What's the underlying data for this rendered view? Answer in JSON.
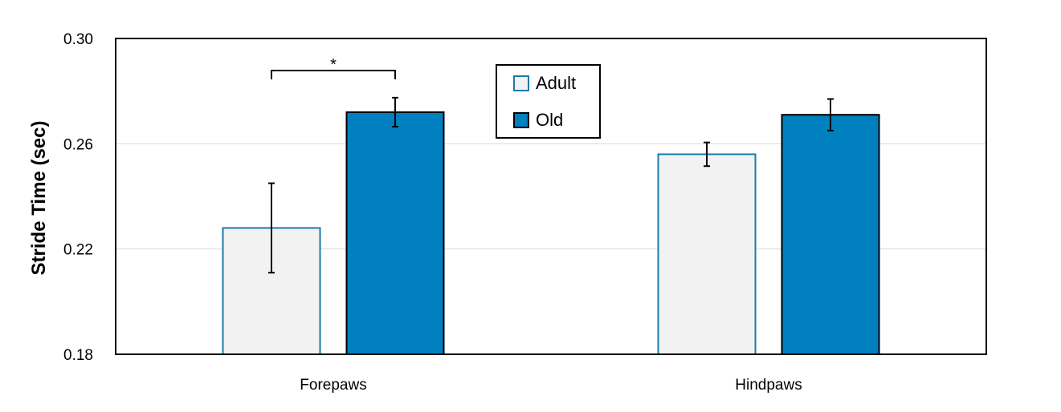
{
  "chart_data": {
    "type": "bar",
    "title": "",
    "xlabel": "",
    "ylabel": "Stride Time (sec)",
    "ylim": [
      0.18,
      0.3
    ],
    "yticks": [
      "0.18",
      "0.22",
      "0.26",
      "0.30"
    ],
    "ytick_values": [
      0.18,
      0.22,
      0.26,
      0.3
    ],
    "grid": "horizontal",
    "categories": [
      "Forepaws",
      "Hindpaws"
    ],
    "series": [
      {
        "name": "Adult",
        "values": [
          0.228,
          0.256
        ],
        "errors": [
          0.017,
          0.0045
        ],
        "fill": "#f2f2f2",
        "stroke": "#1a7bab"
      },
      {
        "name": "Old",
        "values": [
          0.272,
          0.271
        ],
        "errors": [
          0.0055,
          0.006
        ],
        "fill": "#0080bf",
        "stroke": "#000000"
      }
    ],
    "legend": {
      "position": "top-center",
      "entries": [
        "Adult",
        "Old"
      ]
    },
    "annotations": [
      {
        "text": "*",
        "category": "Forepaws",
        "between": [
          "Adult",
          "Old"
        ]
      }
    ]
  }
}
